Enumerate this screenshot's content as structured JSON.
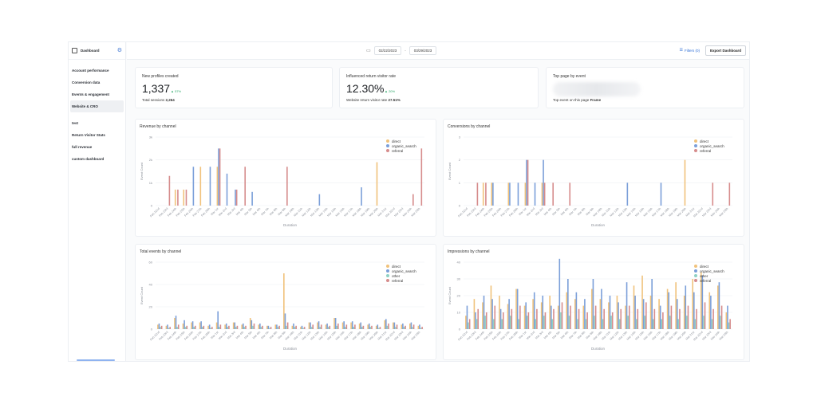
{
  "sidebar": {
    "title": "Dashboard",
    "icon_left": "dashboard-icon",
    "icon_right": "gear-icon",
    "items": [
      {
        "label": "Account performance",
        "active": false
      },
      {
        "label": "Conversion data",
        "active": false
      },
      {
        "label": "Events & engagement",
        "active": false
      },
      {
        "label": "Website & CRO",
        "active": true
      }
    ],
    "custom_items": [
      {
        "label": "test"
      },
      {
        "label": "Return Visitor Stats"
      },
      {
        "label": "full revenue"
      },
      {
        "label": "custom dashboard"
      }
    ]
  },
  "topbar": {
    "start_date": "02/22/2023",
    "end_date": "03/29/2023",
    "filters_label": "Filters (0)",
    "export_label": "Export Dashboard"
  },
  "kpis": [
    {
      "title": "New profiles created",
      "value": "1,337",
      "delta": "57%",
      "sub_label": "Total sessions",
      "sub_value": "2,264"
    },
    {
      "title": "Influenced return visitor rate",
      "value": "12.30%",
      "delta": "20%",
      "sub_label": "Website return visitor rate",
      "sub_value": "27.51%"
    },
    {
      "title": "Top page by event",
      "sub_label": "Top event on this page",
      "sub_value": "Frame"
    }
  ],
  "colors": {
    "direct": "#f0c27b",
    "organic_search": "#7b9fd9",
    "referral": "#d68c8c",
    "other": "#8fd1c4",
    "grid": "#eef0f3",
    "axis_text": "#8a8f98"
  },
  "chart_data": [
    {
      "type": "bar",
      "title": "Revenue by channel",
      "xlabel": "Duration",
      "ylabel": "Event Count",
      "ylim": [
        0,
        3000
      ],
      "yticks": [
        "0",
        "1k",
        "2k",
        "3k"
      ],
      "categories": [
        "Feb 22nd",
        "Feb 23rd",
        "Feb 24th",
        "Feb 25th",
        "Feb 26th",
        "Feb 27th",
        "Feb 28th",
        "Mar 1st",
        "Mar 2nd",
        "Mar 3rd",
        "Mar 4th",
        "Mar 5th",
        "Mar 6th",
        "Mar 7th",
        "Mar 8th",
        "Mar 9th",
        "Mar 10th",
        "Mar 11th",
        "Mar 12th",
        "Mar 13th",
        "Mar 14th",
        "Mar 15th",
        "Mar 16th",
        "Mar 17th",
        "Mar 18th",
        "Mar 19th",
        "Mar 20th",
        "Mar 21st",
        "Mar 22nd",
        "Mar 23rd",
        "Mar 24th",
        "Mar 25th"
      ],
      "series": [
        {
          "name": "direct",
          "values": [
            0,
            0,
            700,
            700,
            0,
            1700,
            0,
            1700,
            0,
            0,
            0,
            0,
            0,
            0,
            0,
            0,
            0,
            0,
            0,
            0,
            0,
            0,
            0,
            0,
            0,
            0,
            1900,
            0,
            0,
            0,
            0,
            0
          ]
        },
        {
          "name": "organic_search",
          "values": [
            0,
            0,
            0,
            0,
            1700,
            0,
            1700,
            2500,
            1400,
            700,
            0,
            600,
            0,
            0,
            0,
            0,
            0,
            0,
            0,
            500,
            0,
            0,
            0,
            0,
            800,
            0,
            0,
            0,
            0,
            0,
            0,
            0
          ]
        },
        {
          "name": "referral",
          "values": [
            0,
            1300,
            700,
            700,
            0,
            0,
            0,
            2500,
            0,
            700,
            1700,
            0,
            0,
            0,
            0,
            1700,
            0,
            0,
            0,
            0,
            0,
            0,
            0,
            0,
            0,
            0,
            0,
            0,
            0,
            0,
            500,
            2500
          ]
        }
      ]
    },
    {
      "type": "bar",
      "title": "Conversions by channel",
      "xlabel": "Duration",
      "ylabel": "Event Count",
      "ylim": [
        0,
        3
      ],
      "yticks": [
        "0",
        "1",
        "2",
        "3"
      ],
      "categories": [
        "Feb 22nd",
        "Feb 23rd",
        "Feb 24th",
        "Feb 25th",
        "Feb 26th",
        "Feb 27th",
        "Feb 28th",
        "Mar 1st",
        "Mar 2nd",
        "Mar 3rd",
        "Mar 4th",
        "Mar 5th",
        "Mar 6th",
        "Mar 7th",
        "Mar 8th",
        "Mar 9th",
        "Mar 10th",
        "Mar 11th",
        "Mar 12th",
        "Mar 13th",
        "Mar 14th",
        "Mar 15th",
        "Mar 16th",
        "Mar 17th",
        "Mar 18th",
        "Mar 19th",
        "Mar 20th",
        "Mar 21st",
        "Mar 22nd",
        "Mar 23rd",
        "Mar 24th",
        "Mar 25th"
      ],
      "series": [
        {
          "name": "direct",
          "values": [
            0,
            0,
            1,
            1,
            0,
            1,
            0,
            1,
            0,
            1,
            0,
            0,
            0,
            0,
            0,
            0,
            0,
            0,
            0,
            0,
            0,
            0,
            0,
            0,
            0,
            0,
            2,
            0,
            0,
            0,
            0,
            0
          ]
        },
        {
          "name": "organic_search",
          "values": [
            0,
            0,
            0,
            1,
            0,
            1,
            1,
            2,
            1,
            2,
            0,
            0,
            0,
            0,
            0,
            0,
            0,
            0,
            0,
            1,
            0,
            0,
            0,
            1,
            0,
            0,
            0,
            0,
            0,
            0,
            0,
            0
          ]
        },
        {
          "name": "referral",
          "values": [
            0,
            1,
            1,
            0,
            0,
            0,
            0,
            2,
            0,
            1,
            1,
            0,
            1,
            0,
            0,
            0,
            0,
            0,
            0,
            0,
            0,
            0,
            0,
            0,
            0,
            0,
            0,
            0,
            0,
            1,
            0,
            1
          ]
        }
      ]
    },
    {
      "type": "bar",
      "title": "Total events by channel",
      "xlabel": "Duration",
      "ylabel": "Event Count",
      "ylim": [
        0,
        60
      ],
      "yticks": [
        "0",
        "20",
        "40",
        "60"
      ],
      "categories": [
        "Feb 22nd",
        "Feb 23rd",
        "Feb 24th",
        "Feb 25th",
        "Feb 26th",
        "Feb 27th",
        "Feb 28th",
        "Mar 1st",
        "Mar 2nd",
        "Mar 3rd",
        "Mar 4th",
        "Mar 5th",
        "Mar 6th",
        "Mar 7th",
        "Mar 8th",
        "Mar 9th",
        "Mar 10th",
        "Mar 11th",
        "Mar 12th",
        "Mar 13th",
        "Mar 14th",
        "Mar 15th",
        "Mar 16th",
        "Mar 17th",
        "Mar 18th",
        "Mar 19th",
        "Mar 20th",
        "Mar 21st",
        "Mar 22nd",
        "Mar 23rd",
        "Mar 24th",
        "Mar 25th"
      ],
      "series": [
        {
          "name": "direct",
          "values": [
            4,
            3,
            10,
            5,
            6,
            6,
            3,
            6,
            4,
            6,
            4,
            10,
            4,
            3,
            4,
            50,
            3,
            2,
            6,
            6,
            4,
            10,
            6,
            6,
            5,
            4,
            3,
            8,
            6,
            4,
            5,
            3
          ]
        },
        {
          "name": "organic_search",
          "values": [
            5,
            4,
            12,
            8,
            7,
            7,
            4,
            16,
            5,
            6,
            5,
            8,
            5,
            3,
            4,
            14,
            5,
            3,
            6,
            7,
            5,
            10,
            7,
            7,
            6,
            5,
            4,
            9,
            6,
            5,
            6,
            4
          ]
        },
        {
          "name": "other",
          "values": [
            2,
            1,
            2,
            2,
            2,
            2,
            1,
            2,
            2,
            2,
            2,
            3,
            2,
            1,
            2,
            3,
            2,
            1,
            2,
            2,
            2,
            3,
            2,
            2,
            2,
            2,
            1,
            3,
            2,
            2,
            2,
            1
          ]
        },
        {
          "name": "referral",
          "values": [
            3,
            2,
            4,
            3,
            3,
            3,
            2,
            4,
            3,
            3,
            3,
            5,
            3,
            2,
            3,
            6,
            3,
            2,
            4,
            4,
            3,
            5,
            4,
            4,
            3,
            3,
            2,
            5,
            4,
            3,
            4,
            2
          ]
        }
      ]
    },
    {
      "type": "bar",
      "title": "Impressions by channel",
      "xlabel": "Duration",
      "ylabel": "Event Count",
      "ylim": [
        0,
        40
      ],
      "yticks": [
        "0",
        "10",
        "20",
        "30",
        "40"
      ],
      "categories": [
        "Feb 22nd",
        "Feb 23rd",
        "Feb 24th",
        "Feb 25th",
        "Feb 26th",
        "Feb 27th",
        "Feb 28th",
        "Mar 1st",
        "Mar 2nd",
        "Mar 3rd",
        "Mar 4th",
        "Mar 5th",
        "Mar 6th",
        "Mar 7th",
        "Mar 8th",
        "Mar 9th",
        "Mar 10th",
        "Mar 11th",
        "Mar 12th",
        "Mar 13th",
        "Mar 14th",
        "Mar 15th",
        "Mar 16th",
        "Mar 17th",
        "Mar 18th",
        "Mar 19th",
        "Mar 20th",
        "Mar 21st",
        "Mar 22nd",
        "Mar 23rd",
        "Mar 24th",
        "Mar 25th"
      ],
      "series": [
        {
          "name": "direct",
          "values": [
            8,
            18,
            16,
            26,
            20,
            15,
            24,
            14,
            18,
            16,
            20,
            14,
            22,
            18,
            14,
            24,
            18,
            16,
            20,
            14,
            26,
            32,
            20,
            18,
            24,
            28,
            20,
            30,
            34,
            22,
            26,
            10
          ]
        },
        {
          "name": "organic_search",
          "values": [
            14,
            10,
            20,
            18,
            12,
            18,
            24,
            16,
            22,
            20,
            14,
            42,
            30,
            22,
            18,
            30,
            24,
            20,
            16,
            28,
            20,
            18,
            30,
            14,
            22,
            18,
            26,
            22,
            32,
            20,
            28,
            14
          ]
        },
        {
          "name": "other",
          "values": [
            4,
            6,
            8,
            6,
            6,
            8,
            6,
            8,
            6,
            8,
            6,
            10,
            8,
            6,
            6,
            8,
            6,
            8,
            6,
            8,
            6,
            8,
            6,
            6,
            8,
            6,
            8,
            6,
            8,
            6,
            8,
            4
          ]
        },
        {
          "name": "referral",
          "values": [
            6,
            12,
            10,
            14,
            10,
            12,
            14,
            10,
            12,
            10,
            12,
            16,
            14,
            12,
            10,
            14,
            12,
            10,
            12,
            14,
            12,
            16,
            12,
            10,
            14,
            12,
            14,
            12,
            16,
            12,
            14,
            6
          ]
        }
      ]
    }
  ]
}
